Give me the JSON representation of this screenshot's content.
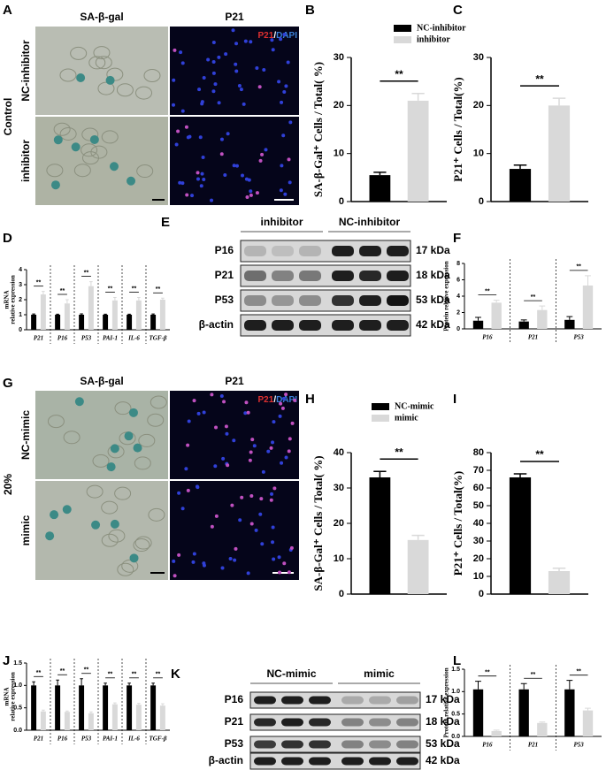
{
  "panels": {
    "A": {
      "letter": "A",
      "col_titles": [
        "SA-β-gal",
        "P21"
      ],
      "stain": [
        "P21",
        "/",
        "DAPI"
      ],
      "row_labels": [
        "NC-inhibitor",
        "inhibitor"
      ],
      "group_label": "Control"
    },
    "E": {
      "letter": "E",
      "lanes": [
        "inhibitor",
        "NC-inhibitor"
      ],
      "rows": [
        [
          "P16",
          "17 kDa"
        ],
        [
          "P21",
          "18 kDa"
        ],
        [
          "P53",
          "53 kDa"
        ],
        [
          "β-actin",
          "42 kDa"
        ]
      ]
    },
    "G": {
      "letter": "G",
      "col_titles": [
        "SA-β-gal",
        "P21"
      ],
      "stain": [
        "P21",
        "/",
        "DAPI"
      ],
      "row_labels": [
        "NC-mimic",
        "mimic"
      ],
      "group_label": "20%"
    },
    "K": {
      "letter": "K",
      "lanes": [
        "NC-mimic",
        "mimic"
      ],
      "rows": [
        [
          "P16",
          "17 kDa"
        ],
        [
          "P21",
          "18 kDa"
        ],
        [
          "P53",
          "53 kDa"
        ],
        [
          "β-actin",
          "42 kDa"
        ]
      ]
    }
  },
  "chart_data": [
    {
      "type": "bar",
      "panel": "B",
      "ylabel": "SA-β-Gal⁺ Cells / Total( %)",
      "series": [
        {
          "name": "NC-inhibitor",
          "color": "#000000",
          "values": [
            5.5
          ],
          "errors": [
            0.6
          ]
        },
        {
          "name": "inhibitor",
          "color": "#d9d9d9",
          "values": [
            21
          ],
          "errors": [
            1.5
          ]
        }
      ],
      "ylim": [
        0,
        30
      ],
      "yticks": [
        0,
        10,
        20,
        30
      ],
      "annotations": [
        "**"
      ]
    },
    {
      "type": "bar",
      "panel": "C",
      "ylabel": "P21⁺ Cells / Total(%)",
      "series": [
        {
          "color": "#000000",
          "values": [
            6.8
          ],
          "errors": [
            0.8
          ]
        },
        {
          "color": "#d9d9d9",
          "values": [
            20
          ],
          "errors": [
            1.5
          ]
        }
      ],
      "ylim": [
        0,
        30
      ],
      "yticks": [
        0,
        10,
        20,
        30
      ],
      "annotations": [
        "**"
      ]
    },
    {
      "type": "bar",
      "panel": "D",
      "ylabel": [
        "mRNA",
        "relative expression"
      ],
      "categories": [
        "P21",
        "P16",
        "P53",
        "PAI-1",
        "IL-6",
        "TGF-β"
      ],
      "series": [
        {
          "color": "#000000",
          "values": [
            1,
            1,
            1,
            1,
            1,
            1
          ],
          "errors": [
            0.05,
            0.04,
            0.06,
            0.04,
            0.04,
            0.05
          ]
        },
        {
          "color": "#d9d9d9",
          "values": [
            2.35,
            1.75,
            2.9,
            1.95,
            1.95,
            2.0
          ],
          "errors": [
            0.2,
            0.25,
            0.3,
            0.2,
            0.2,
            0.1
          ]
        }
      ],
      "ylim": [
        0,
        4
      ],
      "yticks": [
        0,
        1,
        2,
        3,
        4
      ],
      "annotations": [
        "**",
        "**",
        "**",
        "**",
        "**",
        "**"
      ],
      "separators": true
    },
    {
      "type": "bar",
      "panel": "F",
      "ylabel": "Protein relative expression",
      "categories": [
        "P16",
        "P21",
        "P53"
      ],
      "series": [
        {
          "color": "#000000",
          "values": [
            1.0,
            0.9,
            1.1
          ],
          "errors": [
            0.4,
            0.2,
            0.4
          ]
        },
        {
          "color": "#d9d9d9",
          "values": [
            3.2,
            2.3,
            5.3
          ],
          "errors": [
            0.3,
            0.5,
            1.2
          ]
        }
      ],
      "ylim": [
        0,
        8
      ],
      "yticks": [
        0,
        2,
        4,
        6,
        8
      ],
      "annotations": [
        "**",
        "**",
        "**"
      ],
      "separators": true
    },
    {
      "type": "bar",
      "panel": "H",
      "ylabel": "SA-β-Gal⁺ Cells / Total( %)",
      "series": [
        {
          "name": "NC-mimic",
          "color": "#000000",
          "values": [
            33
          ],
          "errors": [
            1.7
          ]
        },
        {
          "name": "mimic",
          "color": "#d9d9d9",
          "values": [
            15.3
          ],
          "errors": [
            1.3
          ]
        }
      ],
      "ylim": [
        0,
        40
      ],
      "yticks": [
        0,
        10,
        20,
        30,
        40
      ],
      "annotations": [
        "**"
      ]
    },
    {
      "type": "bar",
      "panel": "I",
      "ylabel": "P21⁺ Cells / Total(%)",
      "series": [
        {
          "color": "#000000",
          "values": [
            66
          ],
          "errors": [
            2
          ]
        },
        {
          "color": "#d9d9d9",
          "values": [
            13
          ],
          "errors": [
            1.6
          ]
        }
      ],
      "ylim": [
        0,
        80
      ],
      "yticks": [
        0,
        10,
        20,
        30,
        40,
        50,
        60,
        70,
        80
      ],
      "annotations": [
        "**"
      ]
    },
    {
      "type": "bar",
      "panel": "J",
      "ylabel": [
        "mRNA",
        "relative expression"
      ],
      "categories": [
        "P21",
        "P16",
        "P53",
        "PAI-1",
        "IL-6",
        "TGF-β"
      ],
      "series": [
        {
          "color": "#000000",
          "values": [
            1,
            1,
            1,
            1,
            1,
            1
          ],
          "errors": [
            0.08,
            0.12,
            0.15,
            0.05,
            0.05,
            0.05
          ]
        },
        {
          "color": "#d9d9d9",
          "values": [
            0.42,
            0.41,
            0.38,
            0.58,
            0.57,
            0.55
          ],
          "errors": [
            0.03,
            0.02,
            0.03,
            0.03,
            0.03,
            0.04
          ]
        }
      ],
      "ylim": [
        0,
        1.5
      ],
      "yticks": [
        {
          "value": 0,
          "label": "0.0"
        },
        0.5,
        {
          "value": 1,
          "label": "1.0"
        },
        1.5
      ],
      "annotations": [
        "**",
        "**",
        "**",
        "**",
        "**",
        "**"
      ],
      "separators": true
    },
    {
      "type": "bar",
      "panel": "L",
      "ylabel": "Protein relative expression",
      "categories": [
        "P16",
        "P21",
        "P53"
      ],
      "series": [
        {
          "color": "#000000",
          "values": [
            1.05,
            1.05,
            1.05
          ],
          "errors": [
            0.18,
            0.13,
            0.2
          ]
        },
        {
          "color": "#d9d9d9",
          "values": [
            0.12,
            0.3,
            0.58
          ],
          "errors": [
            0.02,
            0.02,
            0.05
          ]
        }
      ],
      "ylim": [
        0,
        1.5
      ],
      "yticks": [
        {
          "value": 0,
          "label": "0.0"
        },
        0.5,
        {
          "value": 1,
          "label": "1.0"
        },
        1.5
      ],
      "annotations": [
        "**",
        "**",
        "**"
      ],
      "separators": true
    }
  ]
}
